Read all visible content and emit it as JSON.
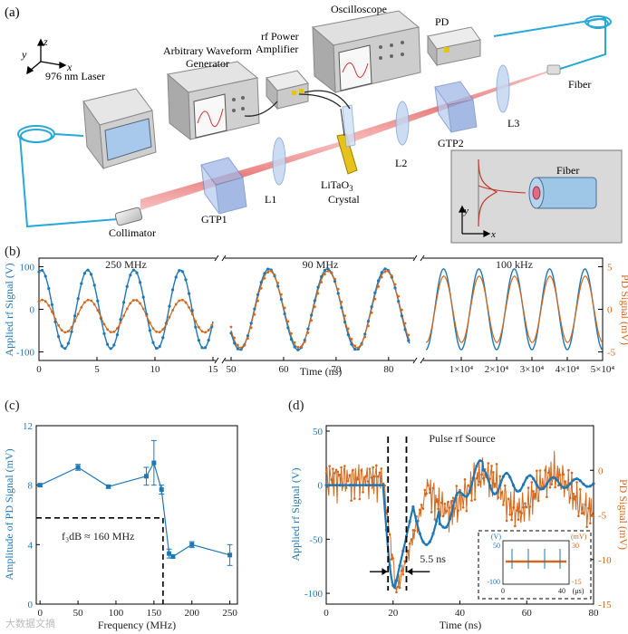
{
  "panel_a": {
    "label": "(a)",
    "axes": {
      "y": "y",
      "z": "z",
      "x": "x"
    },
    "components": {
      "laser": "976 nm Laser",
      "awg": "Arbitrary Waveform Generator",
      "amp": "rf Power Amplifier",
      "scope": "Oscilloscope",
      "pd": "PD",
      "fiber": "Fiber",
      "collimator": "Collimator",
      "gtp1": "GTP1",
      "l1": "L1",
      "crystal": "LiTaO₃ Crystal",
      "l2": "L2",
      "gtp2": "GTP2",
      "l3": "L3"
    },
    "inset": {
      "fiber": "Fiber",
      "y": "y",
      "x": "x"
    }
  },
  "chart_data": [
    {
      "id": "b",
      "type": "line",
      "label": "(b)",
      "xlabel": "Time (ns)",
      "ylabel_left": "Applied rf Signal (V)",
      "ylabel_right": "PD Signal (mV)",
      "ylim_left": [
        -120,
        120
      ],
      "ylim_right": [
        -6,
        6
      ],
      "yticks_left": [
        "100",
        "0",
        "-100"
      ],
      "yticks_right": [
        "5",
        "0",
        "-5"
      ],
      "subplots": [
        {
          "title": "250 MHz",
          "xlim": [
            0,
            15
          ],
          "xticks": [
            "0",
            "5",
            "10",
            "15"
          ],
          "rf_amp": 92,
          "rf_freq": 0.25,
          "pd_amp": 1.9,
          "pd_offset": -0.8
        },
        {
          "title": "90 MHz",
          "xlim": [
            50,
            84
          ],
          "xticks": [
            "50",
            "60",
            "70",
            "80"
          ],
          "rf_amp": 95,
          "rf_freq": 0.09,
          "pd_amp": 4.5,
          "pd_offset": 0
        },
        {
          "title": "100 kHz",
          "xlim": [
            0,
            50000
          ],
          "xticks": [
            "1×10⁴",
            "2×10⁴",
            "3×10⁴",
            "4×10⁴",
            "5×10⁴"
          ],
          "rf_amp": 95,
          "rf_freq": 0.0001,
          "pd_amp": 3.9,
          "pd_offset": 0
        }
      ]
    },
    {
      "id": "c",
      "type": "line",
      "label": "(c)",
      "xlabel": "Frequency (MHz)",
      "ylabel": "Amplitude of PD Signal (mV)",
      "xlim": [
        -5,
        260
      ],
      "ylim": [
        0,
        12
      ],
      "xticks": [
        "0",
        "50",
        "100",
        "150",
        "200",
        "250"
      ],
      "yticks": [
        "0",
        "4",
        "8",
        "12"
      ],
      "x": [
        0,
        50,
        90,
        140,
        150,
        160,
        170,
        175,
        200,
        250
      ],
      "y": [
        8.0,
        9.2,
        7.9,
        8.6,
        9.5,
        7.7,
        3.4,
        3.2,
        4.0,
        3.3
      ],
      "err": [
        0.1,
        0.2,
        0.1,
        0.6,
        1.5,
        0.3,
        0.3,
        0.1,
        0.2,
        0.7
      ],
      "annotation": "f₃dB ≈ 160 MHz",
      "annotation_level": 5.8,
      "annotation_x": 162
    },
    {
      "id": "d",
      "type": "line",
      "label": "(d)",
      "title": "Pulse rf Source",
      "xlabel": "Time (ns)",
      "ylabel_left": "Applied rf Signal (V)",
      "ylabel_right": "PD Signal (mV)",
      "xlim": [
        0,
        80
      ],
      "ylim_left": [
        -110,
        55
      ],
      "ylim_right": [
        -15,
        5
      ],
      "xticks": [
        "0",
        "20",
        "40",
        "60",
        "80"
      ],
      "yticks_left": [
        "50",
        "0",
        "-50",
        "-100"
      ],
      "yticks_right": [
        "0",
        "-5",
        "-10",
        "-15"
      ],
      "annotation": "5.5 ns",
      "marker_x": [
        18.5,
        24
      ],
      "inset": {
        "left_unit": "(V)",
        "right_unit": "(mV)",
        "left_top": "50",
        "left_bottom": "-100",
        "right_top": "30",
        "right_bottom": "-15",
        "x0": "0",
        "x1": "40",
        "xunit": "(μs)"
      }
    }
  ],
  "colors": {
    "rf": "#1f77b4",
    "pd": "#d2691e",
    "beam": "#e06060",
    "fiber": "#29a8d8"
  },
  "watermark": "大数据文摘"
}
